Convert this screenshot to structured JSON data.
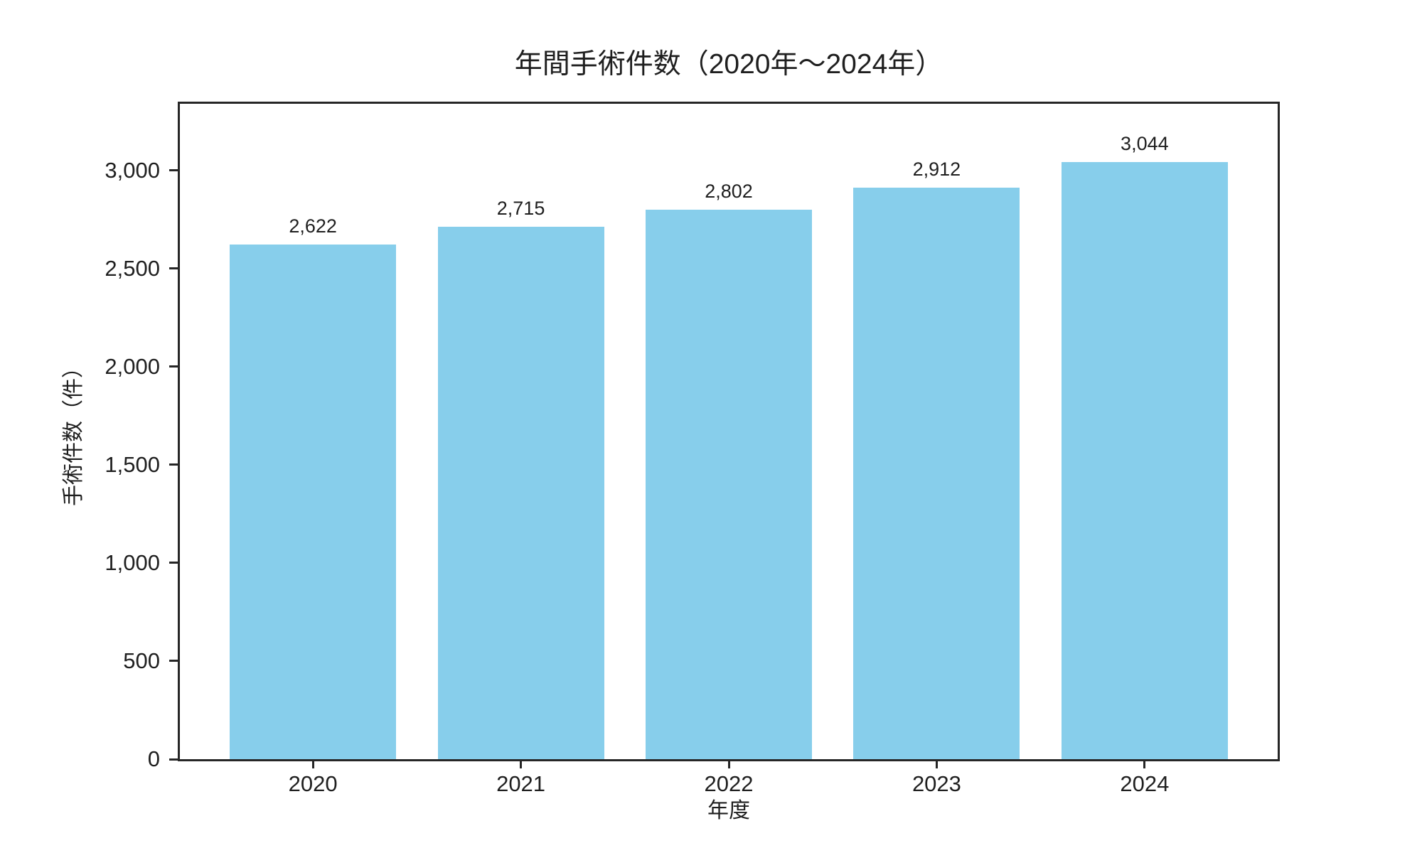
{
  "figure": {
    "background": "#ffffff"
  },
  "chart_data": {
    "type": "bar",
    "title": "年間手術件数（2020年〜2024年）",
    "xlabel": "年度",
    "ylabel": "手術件数（件）",
    "categories": [
      "2020",
      "2021",
      "2022",
      "2023",
      "2024"
    ],
    "values": [
      2622,
      2715,
      2802,
      2912,
      3044
    ],
    "value_labels": [
      "2,622",
      "2,715",
      "2,802",
      "2,912",
      "3,044"
    ],
    "ylim": [
      0,
      3340
    ],
    "yticks": {
      "values": [
        0,
        500,
        1000,
        1500,
        2000,
        2500,
        3000
      ],
      "labels": [
        "0",
        "500",
        "1,000",
        "1,500",
        "2,000",
        "2,500",
        "3,000"
      ]
    },
    "bar_width_fraction": 0.8,
    "x_margin_units": 0.64,
    "grid": false,
    "legend": null,
    "colors": {
      "bar": "#87CEEB",
      "axis": "#262626",
      "text": "#1f1f1f",
      "background": "#ffffff"
    }
  }
}
